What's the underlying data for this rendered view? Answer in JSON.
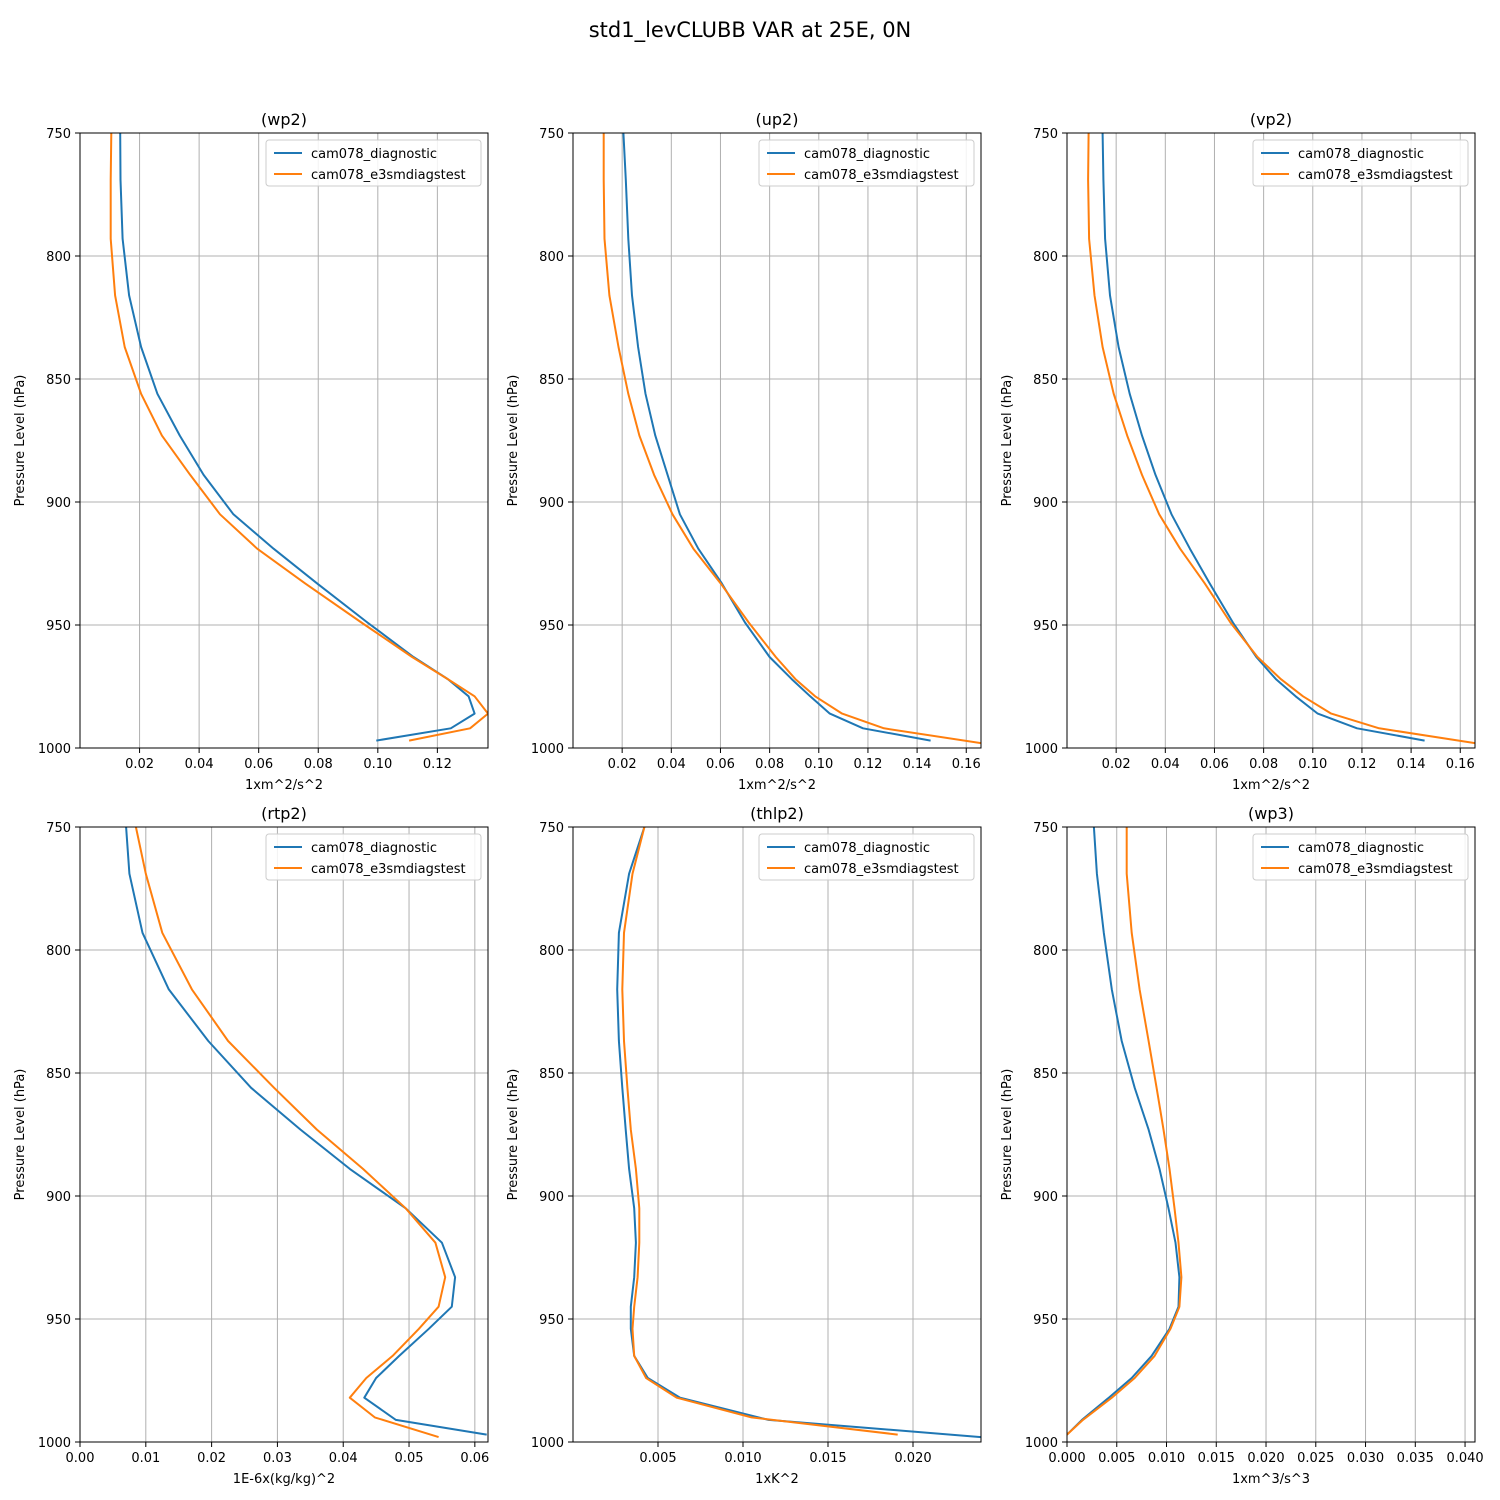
{
  "figure_title": "std1_levCLUBB VAR at 25E, 0N",
  "colors": {
    "diagnostic": "#1f77b4",
    "e3smdiagstest": "#ff7f0e",
    "grid": "#b0b0b0",
    "axis": "#000000"
  },
  "chart_data": [
    {
      "type": "line",
      "title": "(wp2)",
      "xlabel": "1xm^2/s^2",
      "ylabel": "Pressure Level (hPa)",
      "xlim": [
        0,
        0.137
      ],
      "ylim": [
        1000,
        750
      ],
      "xticks": [
        0.02,
        0.04,
        0.06,
        0.08,
        0.1,
        0.12
      ],
      "xtick_labels": [
        "0.02",
        "0.04",
        "0.06",
        "0.08",
        "0.10",
        "0.12"
      ],
      "yticks": [
        750,
        800,
        850,
        900,
        950,
        1000
      ],
      "ytick_labels": [
        "750",
        "800",
        "850",
        "900",
        "950",
        "1000"
      ],
      "grid": true,
      "legend_position": "top-right",
      "series": [
        {
          "name": "cam078_diagnostic",
          "x": [
            0.0135,
            0.0136,
            0.0143,
            0.0165,
            0.0205,
            0.026,
            0.0335,
            0.0415,
            0.0515,
            0.065,
            0.0795,
            0.0965,
            0.112,
            0.1235,
            0.1305,
            0.1325,
            0.1245,
            0.0995
          ],
          "y": [
            750,
            769,
            793,
            816,
            837,
            856,
            873,
            889,
            905,
            919,
            933,
            949,
            963,
            972,
            979,
            986,
            992,
            997
          ]
        },
        {
          "name": "cam078_e3smdiagstest",
          "x": [
            0.0105,
            0.0103,
            0.0103,
            0.0118,
            0.015,
            0.0205,
            0.0275,
            0.037,
            0.047,
            0.0595,
            0.0755,
            0.0945,
            0.1115,
            0.1235,
            0.1325,
            0.137,
            0.131,
            0.1105
          ],
          "y": [
            750,
            769,
            793,
            816,
            837,
            856,
            873,
            889,
            905,
            919,
            933,
            949,
            963,
            972,
            979,
            986,
            992,
            997
          ]
        }
      ]
    },
    {
      "type": "line",
      "title": "(up2)",
      "xlabel": "1xm^2/s^2",
      "ylabel": "Pressure Level (hPa)",
      "xlim": [
        0,
        0.166
      ],
      "ylim": [
        1000,
        750
      ],
      "xticks": [
        0.02,
        0.04,
        0.06,
        0.08,
        0.1,
        0.12,
        0.14,
        0.16
      ],
      "xtick_labels": [
        "0.02",
        "0.04",
        "0.06",
        "0.08",
        "0.10",
        "0.12",
        "0.14",
        "0.16"
      ],
      "yticks": [
        750,
        800,
        850,
        900,
        950,
        1000
      ],
      "ytick_labels": [
        "750",
        "800",
        "850",
        "900",
        "950",
        "1000"
      ],
      "grid": true,
      "legend_position": "top-right",
      "series": [
        {
          "name": "cam078_diagnostic",
          "x": [
            0.0205,
            0.0215,
            0.0225,
            0.024,
            0.0265,
            0.0295,
            0.0335,
            0.0385,
            0.0435,
            0.051,
            0.0605,
            0.07,
            0.08,
            0.089,
            0.0965,
            0.1045,
            0.118,
            0.1455
          ],
          "y": [
            750,
            769,
            793,
            816,
            837,
            856,
            873,
            889,
            905,
            919,
            933,
            949,
            963,
            972,
            979,
            986,
            992,
            997
          ]
        },
        {
          "name": "cam078_e3smdiagstest",
          "x": [
            0.0125,
            0.0125,
            0.0128,
            0.0148,
            0.0185,
            0.0225,
            0.027,
            0.033,
            0.0405,
            0.049,
            0.06,
            0.0715,
            0.0825,
            0.0905,
            0.0985,
            0.1095,
            0.1265,
            0.166
          ],
          "y": [
            750,
            769,
            793,
            816,
            837,
            856,
            873,
            889,
            905,
            919,
            933,
            949,
            963,
            972,
            979,
            986,
            992,
            998
          ]
        }
      ]
    },
    {
      "type": "line",
      "title": "(vp2)",
      "xlabel": "1xm^2/s^2",
      "ylabel": "Pressure Level (hPa)",
      "xlim": [
        0,
        0.166
      ],
      "ylim": [
        1000,
        750
      ],
      "xticks": [
        0.02,
        0.04,
        0.06,
        0.08,
        0.1,
        0.12,
        0.14,
        0.16
      ],
      "xtick_labels": [
        "0.02",
        "0.04",
        "0.06",
        "0.08",
        "0.10",
        "0.12",
        "0.14",
        "0.16"
      ],
      "yticks": [
        750,
        800,
        850,
        900,
        950,
        1000
      ],
      "ytick_labels": [
        "750",
        "800",
        "850",
        "900",
        "950",
        "1000"
      ],
      "grid": true,
      "legend_position": "top-right",
      "series": [
        {
          "name": "cam078_diagnostic",
          "x": [
            0.0145,
            0.0148,
            0.0155,
            0.0175,
            0.021,
            0.0255,
            0.0305,
            0.036,
            0.0425,
            0.05,
            0.058,
            0.0675,
            0.077,
            0.085,
            0.093,
            0.102,
            0.118,
            0.1455
          ],
          "y": [
            750,
            769,
            793,
            816,
            837,
            856,
            873,
            889,
            905,
            919,
            933,
            949,
            963,
            972,
            979,
            986,
            992,
            997
          ]
        },
        {
          "name": "cam078_e3smdiagstest",
          "x": [
            0.0088,
            0.0086,
            0.009,
            0.0112,
            0.0145,
            0.019,
            0.0245,
            0.0305,
            0.0375,
            0.046,
            0.056,
            0.0665,
            0.0775,
            0.087,
            0.096,
            0.1075,
            0.127,
            0.166
          ],
          "y": [
            750,
            769,
            793,
            816,
            837,
            856,
            873,
            889,
            905,
            919,
            933,
            949,
            963,
            972,
            979,
            986,
            992,
            998
          ]
        }
      ]
    },
    {
      "type": "line",
      "title": "(rtp2)",
      "xlabel": "1E-6x(kg/kg)^2",
      "ylabel": "Pressure Level (hPa)",
      "xlim": [
        0,
        0.062
      ],
      "ylim": [
        1000,
        750
      ],
      "xticks": [
        0,
        0.01,
        0.02,
        0.03,
        0.04,
        0.05,
        0.06
      ],
      "xtick_labels": [
        "0.00",
        "0.01",
        "0.02",
        "0.03",
        "0.04",
        "0.05",
        "0.06"
      ],
      "yticks": [
        750,
        800,
        850,
        900,
        950,
        1000
      ],
      "ytick_labels": [
        "750",
        "800",
        "850",
        "900",
        "950",
        "1000"
      ],
      "grid": true,
      "legend_position": "top-right",
      "series": [
        {
          "name": "cam078_diagnostic",
          "x": [
            0.007,
            0.0075,
            0.0095,
            0.0135,
            0.0195,
            0.026,
            0.0335,
            0.041,
            0.0495,
            0.055,
            0.057,
            0.0565,
            0.053,
            0.0485,
            0.045,
            0.0432,
            0.048,
            0.0618
          ],
          "y": [
            750,
            769,
            793,
            816,
            837,
            856,
            873,
            889,
            905,
            919,
            933,
            945,
            954,
            965,
            974,
            982,
            991,
            997
          ]
        },
        {
          "name": "cam078_e3smdiagstest",
          "x": [
            0.0085,
            0.01,
            0.0125,
            0.017,
            0.0225,
            0.0295,
            0.036,
            0.043,
            0.0495,
            0.054,
            0.0555,
            0.0545,
            0.0515,
            0.0475,
            0.0435,
            0.041,
            0.0448,
            0.0545
          ],
          "y": [
            750,
            769,
            793,
            816,
            837,
            856,
            873,
            889,
            905,
            919,
            933,
            945,
            954,
            965,
            974,
            982,
            990,
            998
          ]
        }
      ]
    },
    {
      "type": "line",
      "title": "(thlp2)",
      "xlabel": "1xK^2",
      "ylabel": "Pressure Level (hPa)",
      "xlim": [
        0,
        0.024
      ],
      "ylim": [
        1000,
        750
      ],
      "xticks": [
        0.005,
        0.01,
        0.015,
        0.02
      ],
      "xtick_labels": [
        "0.005",
        "0.010",
        "0.015",
        "0.020"
      ],
      "yticks": [
        750,
        800,
        850,
        900,
        950,
        1000
      ],
      "ytick_labels": [
        "750",
        "800",
        "850",
        "900",
        "950",
        "1000"
      ],
      "grid": true,
      "legend_position": "top-right",
      "series": [
        {
          "name": "cam078_diagnostic",
          "x": [
            0.0042,
            0.0033,
            0.0027,
            0.0026,
            0.0027,
            0.0029,
            0.0031,
            0.0033,
            0.0036,
            0.0037,
            0.0036,
            0.0034,
            0.0034,
            0.0036,
            0.0044,
            0.0063,
            0.0115,
            0.024
          ],
          "y": [
            750,
            769,
            793,
            816,
            837,
            856,
            873,
            889,
            905,
            919,
            933,
            945,
            954,
            965,
            974,
            982,
            991,
            998
          ]
        },
        {
          "name": "cam078_e3smdiagstest",
          "x": [
            0.0042,
            0.0035,
            0.003,
            0.0029,
            0.003,
            0.0032,
            0.0034,
            0.0037,
            0.0039,
            0.0039,
            0.0038,
            0.0036,
            0.0035,
            0.0036,
            0.0043,
            0.0061,
            0.0105,
            0.0191
          ],
          "y": [
            750,
            769,
            793,
            816,
            837,
            856,
            873,
            889,
            905,
            919,
            933,
            945,
            954,
            965,
            974,
            982,
            990,
            997
          ]
        }
      ]
    },
    {
      "type": "line",
      "title": "(wp3)",
      "xlabel": "1xm^3/s^3",
      "ylabel": "Pressure Level (hPa)",
      "xlim": [
        0,
        0.041
      ],
      "ylim": [
        1000,
        750
      ],
      "xticks": [
        0,
        0.005,
        0.01,
        0.015,
        0.02,
        0.025,
        0.03,
        0.035,
        0.04
      ],
      "xtick_labels": [
        "0.000",
        "0.005",
        "0.010",
        "0.015",
        "0.020",
        "0.025",
        "0.030",
        "0.035",
        "0.040"
      ],
      "yticks": [
        750,
        800,
        850,
        900,
        950,
        1000
      ],
      "ytick_labels": [
        "750",
        "800",
        "850",
        "900",
        "950",
        "1000"
      ],
      "grid": true,
      "legend_position": "top-right",
      "series": [
        {
          "name": "cam078_diagnostic",
          "x": [
            0.0027,
            0.003,
            0.0037,
            0.0045,
            0.0055,
            0.0068,
            0.0082,
            0.0093,
            0.0102,
            0.0109,
            0.0113,
            0.0112,
            0.0103,
            0.0085,
            0.0065,
            0.0042,
            0.0015,
            0.0
          ],
          "y": [
            750,
            769,
            793,
            816,
            837,
            856,
            873,
            889,
            905,
            919,
            933,
            945,
            954,
            965,
            974,
            982,
            991,
            997
          ]
        },
        {
          "name": "cam078_e3smdiagstest",
          "x": [
            0.006,
            0.006,
            0.0065,
            0.0073,
            0.0082,
            0.009,
            0.0097,
            0.0103,
            0.0108,
            0.0112,
            0.0115,
            0.0113,
            0.0104,
            0.0088,
            0.0068,
            0.0045,
            0.0016,
            0.0
          ],
          "y": [
            750,
            769,
            793,
            816,
            837,
            856,
            873,
            889,
            905,
            919,
            933,
            945,
            954,
            965,
            974,
            982,
            991,
            997
          ]
        }
      ]
    }
  ]
}
